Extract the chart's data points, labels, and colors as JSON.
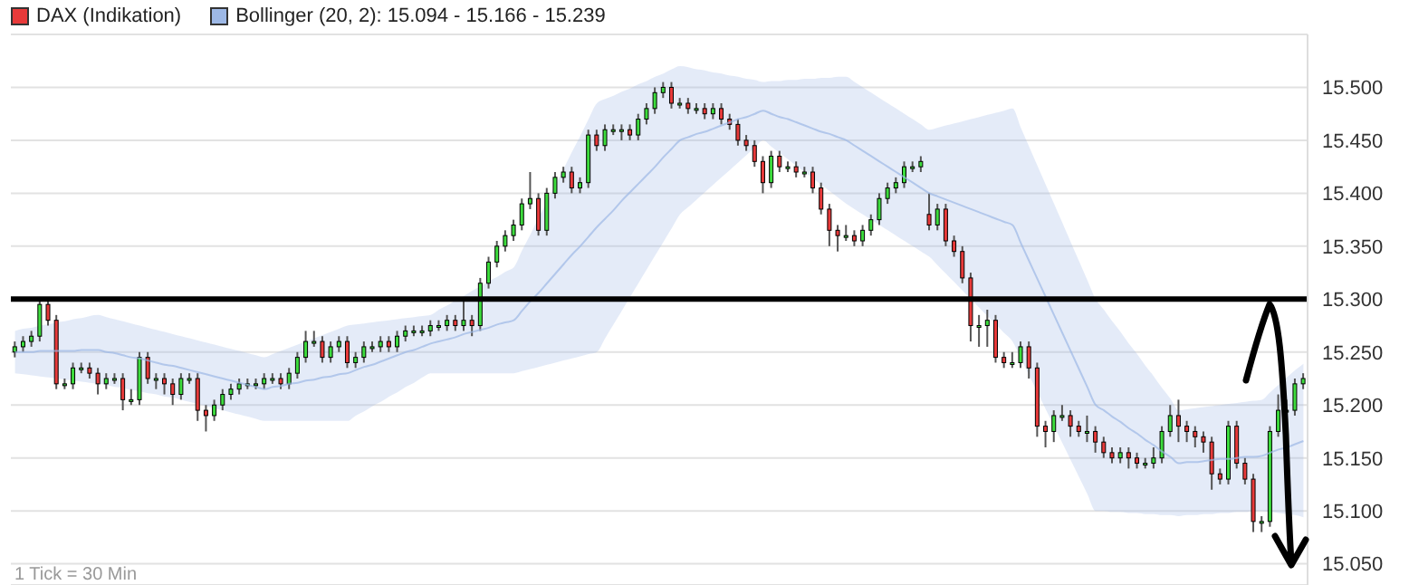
{
  "chart_data": {
    "type": "candlestick",
    "legend": "top left",
    "grid": "y",
    "tick_labels": "y",
    "ylim": [
      15.03,
      15.55
    ],
    "yticks": [
      {
        "value": 15.05,
        "label": "15.050"
      },
      {
        "value": 15.1,
        "label": "15.100"
      },
      {
        "value": 15.15,
        "label": "15.150"
      },
      {
        "value": 15.2,
        "label": "15.200"
      },
      {
        "value": 15.25,
        "label": "15.250"
      },
      {
        "value": 15.3,
        "label": "15.300"
      },
      {
        "value": 15.35,
        "label": "15.350"
      },
      {
        "value": 15.4,
        "label": "15.400"
      },
      {
        "value": 15.45,
        "label": "15.450"
      },
      {
        "value": 15.5,
        "label": "15.500"
      }
    ],
    "ref_lines": [
      {
        "axis": "y",
        "value": 15.3,
        "color": "#000000"
      }
    ],
    "annotations": [
      "1 Tick = 30 Min"
    ],
    "categories": [
      null,
      null,
      null,
      null,
      null,
      null,
      null,
      null,
      null,
      null,
      null,
      null,
      null,
      null,
      null,
      null,
      null,
      null,
      null,
      null,
      null,
      null,
      null,
      null,
      null,
      null,
      null,
      null,
      null,
      null,
      null,
      null,
      null,
      null,
      null,
      null,
      null,
      null,
      null,
      null,
      null,
      null,
      null,
      null,
      null,
      null,
      null,
      null,
      null,
      null,
      null,
      null,
      null,
      null,
      null,
      null,
      null,
      null,
      null,
      null,
      null,
      null,
      null,
      null,
      null,
      null,
      null,
      null,
      null,
      null,
      null,
      null,
      null,
      null,
      null,
      null,
      null,
      null,
      null,
      null,
      null,
      null,
      null,
      null,
      null,
      null,
      null,
      null,
      null,
      null,
      null,
      null,
      null,
      null,
      null,
      null,
      null,
      null,
      null,
      null,
      null,
      null,
      null,
      null,
      null,
      null,
      null,
      null,
      null,
      null,
      null,
      null,
      null,
      null,
      null,
      null,
      null,
      null,
      null,
      null,
      null,
      null,
      null,
      null,
      null,
      null,
      null,
      null,
      null,
      null,
      null,
      null,
      null,
      null,
      null,
      null,
      null,
      null,
      null,
      null,
      null,
      null,
      null,
      null,
      null,
      null,
      null,
      null,
      null,
      null,
      null,
      null,
      null,
      null,
      null,
      null
    ],
    "series": [
      {
        "name": "DAX (Indikation)",
        "color": "#e83a3a",
        "ohlc": [
          [
            15.25,
            15.26,
            15.245,
            15.255
          ],
          [
            15.255,
            15.265,
            15.25,
            15.26
          ],
          [
            15.26,
            15.27,
            15.255,
            15.265
          ],
          [
            15.265,
            15.3,
            15.26,
            15.295
          ],
          [
            15.295,
            15.3,
            15.275,
            15.28
          ],
          [
            15.28,
            15.285,
            15.215,
            15.22
          ],
          [
            15.22,
            15.225,
            15.215,
            15.22
          ],
          [
            15.22,
            15.24,
            15.215,
            15.235
          ],
          [
            15.235,
            15.24,
            15.23,
            15.235
          ],
          [
            15.235,
            15.24,
            15.225,
            15.23
          ],
          [
            15.23,
            15.235,
            15.21,
            15.22
          ],
          [
            15.22,
            15.23,
            15.215,
            15.225
          ],
          [
            15.225,
            15.23,
            15.22,
            15.225
          ],
          [
            15.225,
            15.23,
            15.195,
            15.205
          ],
          [
            15.205,
            15.215,
            15.2,
            15.205
          ],
          [
            15.205,
            15.25,
            15.2,
            15.245
          ],
          [
            15.245,
            15.25,
            15.22,
            15.225
          ],
          [
            15.225,
            15.23,
            15.215,
            15.225
          ],
          [
            15.225,
            15.23,
            15.21,
            15.22
          ],
          [
            15.22,
            15.225,
            15.2,
            15.21
          ],
          [
            15.21,
            15.23,
            15.205,
            15.225
          ],
          [
            15.225,
            15.23,
            15.22,
            15.225
          ],
          [
            15.225,
            15.23,
            15.185,
            15.195
          ],
          [
            15.195,
            15.2,
            15.175,
            15.19
          ],
          [
            15.19,
            15.205,
            15.185,
            15.2
          ],
          [
            15.2,
            15.215,
            15.195,
            15.21
          ],
          [
            15.21,
            15.22,
            15.205,
            15.215
          ],
          [
            15.215,
            15.225,
            15.21,
            15.22
          ],
          [
            15.22,
            15.225,
            15.215,
            15.22
          ],
          [
            15.22,
            15.225,
            15.215,
            15.22
          ],
          [
            15.22,
            15.23,
            15.215,
            15.225
          ],
          [
            15.225,
            15.23,
            15.22,
            15.225
          ],
          [
            15.225,
            15.23,
            15.215,
            15.22
          ],
          [
            15.22,
            15.235,
            15.215,
            15.23
          ],
          [
            15.23,
            15.25,
            15.225,
            15.245
          ],
          [
            15.245,
            15.27,
            15.24,
            15.26
          ],
          [
            15.26,
            15.27,
            15.255,
            15.26
          ],
          [
            15.26,
            15.265,
            15.24,
            15.245
          ],
          [
            15.245,
            15.26,
            15.24,
            15.255
          ],
          [
            15.255,
            15.265,
            15.25,
            15.26
          ],
          [
            15.26,
            15.265,
            15.235,
            15.24
          ],
          [
            15.24,
            15.25,
            15.235,
            15.245
          ],
          [
            15.245,
            15.26,
            15.24,
            15.255
          ],
          [
            15.255,
            15.26,
            15.25,
            15.255
          ],
          [
            15.255,
            15.265,
            15.25,
            15.26
          ],
          [
            15.26,
            15.265,
            15.25,
            15.255
          ],
          [
            15.255,
            15.27,
            15.25,
            15.265
          ],
          [
            15.265,
            15.275,
            15.26,
            15.27
          ],
          [
            15.27,
            15.275,
            15.265,
            15.27
          ],
          [
            15.27,
            15.275,
            15.265,
            15.27
          ],
          [
            15.27,
            15.28,
            15.265,
            15.275
          ],
          [
            15.275,
            15.28,
            15.27,
            15.275
          ],
          [
            15.275,
            15.285,
            15.27,
            15.28
          ],
          [
            15.28,
            15.285,
            15.27,
            15.275
          ],
          [
            15.275,
            15.3,
            15.27,
            15.28
          ],
          [
            15.28,
            15.285,
            15.265,
            15.275
          ],
          [
            15.275,
            15.32,
            15.27,
            15.315
          ],
          [
            15.315,
            15.34,
            15.31,
            15.335
          ],
          [
            15.335,
            15.355,
            15.33,
            15.35
          ],
          [
            15.35,
            15.365,
            15.345,
            15.36
          ],
          [
            15.36,
            15.375,
            15.355,
            15.37
          ],
          [
            15.37,
            15.395,
            15.365,
            15.39
          ],
          [
            15.39,
            15.42,
            15.385,
            15.395
          ],
          [
            15.395,
            15.4,
            15.36,
            15.365
          ],
          [
            15.365,
            15.405,
            15.36,
            15.4
          ],
          [
            15.4,
            15.42,
            15.395,
            15.415
          ],
          [
            15.415,
            15.425,
            15.41,
            15.42
          ],
          [
            15.42,
            15.425,
            15.4,
            15.405
          ],
          [
            15.405,
            15.415,
            15.4,
            15.41
          ],
          [
            15.41,
            15.46,
            15.405,
            15.455
          ],
          [
            15.455,
            15.46,
            15.44,
            15.445
          ],
          [
            15.445,
            15.465,
            15.44,
            15.46
          ],
          [
            15.46,
            15.465,
            15.455,
            15.46
          ],
          [
            15.46,
            15.465,
            15.45,
            15.46
          ],
          [
            15.46,
            15.465,
            15.45,
            15.455
          ],
          [
            15.455,
            15.475,
            15.45,
            15.47
          ],
          [
            15.47,
            15.485,
            15.465,
            15.48
          ],
          [
            15.48,
            15.5,
            15.475,
            15.495
          ],
          [
            15.495,
            15.505,
            15.49,
            15.5
          ],
          [
            15.5,
            15.505,
            15.48,
            15.485
          ],
          [
            15.485,
            15.49,
            15.48,
            15.485
          ],
          [
            15.485,
            15.49,
            15.475,
            15.48
          ],
          [
            15.48,
            15.485,
            15.475,
            15.48
          ],
          [
            15.48,
            15.485,
            15.47,
            15.475
          ],
          [
            15.475,
            15.485,
            15.47,
            15.48
          ],
          [
            15.48,
            15.485,
            15.465,
            15.47
          ],
          [
            15.47,
            15.475,
            15.46,
            15.465
          ],
          [
            15.465,
            15.47,
            15.445,
            15.45
          ],
          [
            15.45,
            15.455,
            15.44,
            15.445
          ],
          [
            15.445,
            15.45,
            15.425,
            15.43
          ],
          [
            15.43,
            15.435,
            15.4,
            15.41
          ],
          [
            15.41,
            15.44,
            15.405,
            15.435
          ],
          [
            15.435,
            15.44,
            15.42,
            15.425
          ],
          [
            15.425,
            15.43,
            15.42,
            15.425
          ],
          [
            15.425,
            15.43,
            15.415,
            15.42
          ],
          [
            15.42,
            15.425,
            15.415,
            15.42
          ],
          [
            15.42,
            15.425,
            15.4,
            15.405
          ],
          [
            15.405,
            15.41,
            15.38,
            15.385
          ],
          [
            15.385,
            15.39,
            15.35,
            15.365
          ],
          [
            15.365,
            15.37,
            15.345,
            15.36
          ],
          [
            15.36,
            15.37,
            15.355,
            15.36
          ],
          [
            15.36,
            15.365,
            15.35,
            15.355
          ],
          [
            15.355,
            15.37,
            15.35,
            15.365
          ],
          [
            15.365,
            15.38,
            15.36,
            15.375
          ],
          [
            15.375,
            15.4,
            15.37,
            15.395
          ],
          [
            15.395,
            15.41,
            15.39,
            15.405
          ],
          [
            15.405,
            15.415,
            15.4,
            15.41
          ],
          [
            15.41,
            15.43,
            15.405,
            15.425
          ],
          [
            15.425,
            15.43,
            15.42,
            15.425
          ],
          [
            15.425,
            15.435,
            15.42,
            15.43
          ],
          [
            15.38,
            15.4,
            15.365,
            15.37
          ],
          [
            15.37,
            15.39,
            15.365,
            15.385
          ],
          [
            15.385,
            15.39,
            15.35,
            15.355
          ],
          [
            15.355,
            15.36,
            15.34,
            15.345
          ],
          [
            15.345,
            15.35,
            15.315,
            15.32
          ],
          [
            15.32,
            15.325,
            15.26,
            15.275
          ],
          [
            15.275,
            15.285,
            15.255,
            15.275
          ],
          [
            15.275,
            15.29,
            15.255,
            15.28
          ],
          [
            15.28,
            15.285,
            15.24,
            15.245
          ],
          [
            15.245,
            15.25,
            15.235,
            15.24
          ],
          [
            15.24,
            15.25,
            15.235,
            15.24
          ],
          [
            15.24,
            15.26,
            15.235,
            15.255
          ],
          [
            15.255,
            15.26,
            15.225,
            15.235
          ],
          [
            15.235,
            15.24,
            15.17,
            15.18
          ],
          [
            15.18,
            15.185,
            15.16,
            15.175
          ],
          [
            15.175,
            15.195,
            15.165,
            15.19
          ],
          [
            15.19,
            15.2,
            15.185,
            15.19
          ],
          [
            15.19,
            15.195,
            15.17,
            15.18
          ],
          [
            15.18,
            15.185,
            15.17,
            15.175
          ],
          [
            15.175,
            15.19,
            15.165,
            15.175
          ],
          [
            15.175,
            15.18,
            15.155,
            15.165
          ],
          [
            15.165,
            15.17,
            15.15,
            15.155
          ],
          [
            15.155,
            15.16,
            15.145,
            15.15
          ],
          [
            15.15,
            15.16,
            15.145,
            15.155
          ],
          [
            15.155,
            15.16,
            15.14,
            15.15
          ],
          [
            15.15,
            15.155,
            15.14,
            15.145
          ],
          [
            15.145,
            15.15,
            15.14,
            15.145
          ],
          [
            15.145,
            15.16,
            15.14,
            15.15
          ],
          [
            15.15,
            15.18,
            15.145,
            15.175
          ],
          [
            15.175,
            15.2,
            15.17,
            15.19
          ],
          [
            15.19,
            15.205,
            15.165,
            15.18
          ],
          [
            15.18,
            15.185,
            15.165,
            15.175
          ],
          [
            15.175,
            15.18,
            15.16,
            15.17
          ],
          [
            15.17,
            15.175,
            15.155,
            15.165
          ],
          [
            15.165,
            15.17,
            15.12,
            15.135
          ],
          [
            15.135,
            15.14,
            15.125,
            15.13
          ],
          [
            15.13,
            15.185,
            15.125,
            15.18
          ],
          [
            15.18,
            15.185,
            15.14,
            15.145
          ],
          [
            15.145,
            15.15,
            15.125,
            15.13
          ],
          [
            15.13,
            15.135,
            15.08,
            15.09
          ],
          [
            15.09,
            15.095,
            15.08,
            15.09
          ],
          [
            15.09,
            15.18,
            15.085,
            15.175
          ],
          [
            15.175,
            15.21,
            15.17,
            15.195
          ],
          [
            15.195,
            15.205,
            15.185,
            15.195
          ],
          [
            15.195,
            15.225,
            15.19,
            15.22
          ],
          [
            15.22,
            15.23,
            15.215,
            15.225
          ]
        ],
        "colors": [
          "#3ddc3d",
          "#3ddc3d",
          "#3ddc3d",
          "#3ddc3d",
          "#e83a3a",
          "#e83a3a",
          "#3ddc3d",
          "#3ddc3d",
          "#3ddc3d",
          "#e83a3a",
          "#e83a3a",
          "#3ddc3d",
          "#3ddc3d",
          "#e83a3a",
          "#3ddc3d",
          "#3ddc3d",
          "#e83a3a",
          "#3ddc3d",
          "#e83a3a",
          "#e83a3a",
          "#3ddc3d",
          "#3ddc3d",
          "#e83a3a",
          "#e83a3a",
          "#3ddc3d",
          "#3ddc3d",
          "#3ddc3d",
          "#3ddc3d",
          "#3ddc3d",
          "#3ddc3d",
          "#3ddc3d",
          "#3ddc3d",
          "#e83a3a",
          "#3ddc3d",
          "#3ddc3d",
          "#3ddc3d",
          "#3ddc3d",
          "#e83a3a",
          "#3ddc3d",
          "#3ddc3d",
          "#e83a3a",
          "#3ddc3d",
          "#3ddc3d",
          "#3ddc3d",
          "#3ddc3d",
          "#e83a3a",
          "#3ddc3d",
          "#3ddc3d",
          "#3ddc3d",
          "#3ddc3d",
          "#3ddc3d",
          "#3ddc3d",
          "#3ddc3d",
          "#e83a3a",
          "#3ddc3d",
          "#e83a3a",
          "#3ddc3d",
          "#3ddc3d",
          "#3ddc3d",
          "#3ddc3d",
          "#3ddc3d",
          "#3ddc3d",
          "#3ddc3d",
          "#e83a3a",
          "#3ddc3d",
          "#3ddc3d",
          "#3ddc3d",
          "#e83a3a",
          "#3ddc3d",
          "#3ddc3d",
          "#e83a3a",
          "#3ddc3d",
          "#3ddc3d",
          "#3ddc3d",
          "#e83a3a",
          "#3ddc3d",
          "#3ddc3d",
          "#3ddc3d",
          "#3ddc3d",
          "#e83a3a",
          "#3ddc3d",
          "#e83a3a",
          "#3ddc3d",
          "#e83a3a",
          "#3ddc3d",
          "#e83a3a",
          "#e83a3a",
          "#e83a3a",
          "#e83a3a",
          "#e83a3a",
          "#e83a3a",
          "#3ddc3d",
          "#e83a3a",
          "#3ddc3d",
          "#e83a3a",
          "#3ddc3d",
          "#e83a3a",
          "#e83a3a",
          "#e83a3a",
          "#e83a3a",
          "#3ddc3d",
          "#e83a3a",
          "#3ddc3d",
          "#3ddc3d",
          "#3ddc3d",
          "#3ddc3d",
          "#3ddc3d",
          "#3ddc3d",
          "#3ddc3d",
          "#3ddc3d",
          "#e83a3a",
          "#3ddc3d",
          "#e83a3a",
          "#e83a3a",
          "#e83a3a",
          "#e83a3a",
          "#3ddc3d",
          "#3ddc3d",
          "#e83a3a",
          "#e83a3a",
          "#3ddc3d",
          "#3ddc3d",
          "#e83a3a",
          "#e83a3a",
          "#e83a3a",
          "#3ddc3d",
          "#3ddc3d",
          "#e83a3a",
          "#e83a3a",
          "#3ddc3d",
          "#e83a3a",
          "#e83a3a",
          "#e83a3a",
          "#3ddc3d",
          "#e83a3a",
          "#e83a3a",
          "#3ddc3d",
          "#3ddc3d",
          "#3ddc3d",
          "#3ddc3d",
          "#e83a3a",
          "#e83a3a",
          "#e83a3a",
          "#e83a3a",
          "#e83a3a",
          "#e83a3a",
          "#3ddc3d",
          "#e83a3a",
          "#e83a3a",
          "#e83a3a",
          "#3ddc3d",
          "#3ddc3d",
          "#3ddc3d",
          "#3ddc3d",
          "#3ddc3d",
          "#3ddc3d"
        ]
      },
      {
        "type": "line",
        "name": "Bollinger (20, 2): 15.094 - 15.166 - 15.239",
        "color": "#9db8e6",
        "values": [
          15.25,
          15.25,
          15.25,
          15.251,
          15.251,
          15.251,
          15.251,
          15.251,
          15.252,
          15.252,
          15.252,
          15.25,
          15.249,
          15.247,
          15.245,
          15.244,
          15.242,
          15.24,
          15.238,
          15.237,
          15.235,
          15.233,
          15.231,
          15.229,
          15.227,
          15.225,
          15.223,
          15.221,
          15.219,
          15.217,
          15.215,
          15.217,
          15.218,
          15.22,
          15.221,
          15.223,
          15.224,
          15.226,
          15.227,
          15.229,
          15.23,
          15.233,
          15.236,
          15.238,
          15.241,
          15.244,
          15.247,
          15.25,
          15.252,
          15.255,
          15.258,
          15.26,
          15.262,
          15.264,
          15.267,
          15.269,
          15.271,
          15.273,
          15.276,
          15.278,
          15.28,
          15.289,
          15.298,
          15.306,
          15.315,
          15.324,
          15.333,
          15.342,
          15.35,
          15.359,
          15.368,
          15.376,
          15.384,
          15.393,
          15.401,
          15.409,
          15.417,
          15.425,
          15.434,
          15.442,
          15.45,
          15.453,
          15.456,
          15.458,
          15.461,
          15.464,
          15.467,
          15.47,
          15.472,
          15.475,
          15.478,
          15.475,
          15.472,
          15.47,
          15.467,
          15.464,
          15.461,
          15.458,
          15.456,
          15.453,
          15.45,
          15.445,
          15.44,
          15.435,
          15.43,
          15.425,
          15.42,
          15.415,
          15.41,
          15.405,
          15.4,
          15.397,
          15.394,
          15.391,
          15.388,
          15.385,
          15.382,
          15.379,
          15.376,
          15.373,
          15.37,
          15.353,
          15.336,
          15.319,
          15.302,
          15.285,
          15.268,
          15.251,
          15.234,
          15.217,
          15.2,
          15.195,
          15.189,
          15.184,
          15.178,
          15.173,
          15.167,
          15.162,
          15.156,
          15.151,
          15.145,
          15.146,
          15.146,
          15.147,
          15.148,
          15.149,
          15.149,
          15.15,
          15.151,
          15.151,
          15.152,
          15.155,
          15.158,
          15.16,
          15.163,
          15.166
        ],
        "upper": [
          15.27,
          15.272,
          15.273,
          15.275,
          15.276,
          15.278,
          15.279,
          15.281,
          15.282,
          15.284,
          15.285,
          15.283,
          15.281,
          15.279,
          15.277,
          15.275,
          15.273,
          15.271,
          15.269,
          15.267,
          15.265,
          15.263,
          15.261,
          15.259,
          15.257,
          15.255,
          15.253,
          15.251,
          15.249,
          15.247,
          15.245,
          15.248,
          15.251,
          15.254,
          15.257,
          15.26,
          15.263,
          15.266,
          15.269,
          15.272,
          15.275,
          15.276,
          15.277,
          15.278,
          15.279,
          15.28,
          15.281,
          15.282,
          15.283,
          15.284,
          15.285,
          15.29,
          15.294,
          15.299,
          15.303,
          15.308,
          15.312,
          15.317,
          15.321,
          15.326,
          15.33,
          15.346,
          15.361,
          15.377,
          15.392,
          15.408,
          15.423,
          15.439,
          15.454,
          15.47,
          15.485,
          15.489,
          15.492,
          15.496,
          15.499,
          15.503,
          15.506,
          15.51,
          15.513,
          15.517,
          15.52,
          15.519,
          15.517,
          15.516,
          15.514,
          15.513,
          15.511,
          15.51,
          15.508,
          15.507,
          15.505,
          15.506,
          15.506,
          15.507,
          15.507,
          15.508,
          15.508,
          15.509,
          15.509,
          15.51,
          15.51,
          15.505,
          15.5,
          15.495,
          15.49,
          15.485,
          15.48,
          15.475,
          15.47,
          15.465,
          15.46,
          15.462,
          15.464,
          15.466,
          15.468,
          15.47,
          15.472,
          15.474,
          15.476,
          15.478,
          15.48,
          15.462,
          15.444,
          15.426,
          15.408,
          15.39,
          15.372,
          15.354,
          15.336,
          15.318,
          15.3,
          15.29,
          15.279,
          15.269,
          15.258,
          15.248,
          15.237,
          15.227,
          15.216,
          15.206,
          15.195,
          15.196,
          15.197,
          15.198,
          15.199,
          15.2,
          15.201,
          15.202,
          15.203,
          15.204,
          15.205,
          15.212,
          15.219,
          15.226,
          15.233,
          15.239
        ],
        "lower": [
          15.23,
          15.229,
          15.228,
          15.227,
          15.226,
          15.225,
          15.224,
          15.223,
          15.222,
          15.221,
          15.22,
          15.219,
          15.217,
          15.216,
          15.214,
          15.213,
          15.211,
          15.21,
          15.208,
          15.207,
          15.205,
          15.203,
          15.201,
          15.199,
          15.197,
          15.195,
          15.193,
          15.191,
          15.189,
          15.187,
          15.185,
          15.185,
          15.185,
          15.185,
          15.185,
          15.185,
          15.185,
          15.185,
          15.185,
          15.185,
          15.185,
          15.19,
          15.194,
          15.199,
          15.203,
          15.208,
          15.212,
          15.217,
          15.221,
          15.226,
          15.23,
          15.23,
          15.23,
          15.23,
          15.23,
          15.23,
          15.23,
          15.23,
          15.23,
          15.23,
          15.23,
          15.232,
          15.234,
          15.236,
          15.238,
          15.24,
          15.242,
          15.244,
          15.246,
          15.248,
          15.25,
          15.263,
          15.276,
          15.289,
          15.302,
          15.315,
          15.328,
          15.341,
          15.354,
          15.367,
          15.38,
          15.387,
          15.394,
          15.401,
          15.408,
          15.415,
          15.422,
          15.429,
          15.436,
          15.443,
          15.45,
          15.444,
          15.438,
          15.432,
          15.426,
          15.42,
          15.414,
          15.408,
          15.402,
          15.396,
          15.39,
          15.385,
          15.38,
          15.375,
          15.37,
          15.365,
          15.36,
          15.355,
          15.35,
          15.345,
          15.34,
          15.332,
          15.324,
          15.316,
          15.308,
          15.3,
          15.292,
          15.284,
          15.276,
          15.268,
          15.26,
          15.244,
          15.228,
          15.212,
          15.196,
          15.18,
          15.164,
          15.148,
          15.132,
          15.116,
          15.1,
          15.1,
          15.099,
          15.099,
          15.098,
          15.098,
          15.097,
          15.097,
          15.096,
          15.096,
          15.095,
          15.096,
          15.096,
          15.097,
          15.097,
          15.098,
          15.098,
          15.099,
          15.099,
          15.1,
          15.1,
          15.099,
          15.098,
          15.097,
          15.096,
          15.094
        ]
      }
    ]
  }
}
